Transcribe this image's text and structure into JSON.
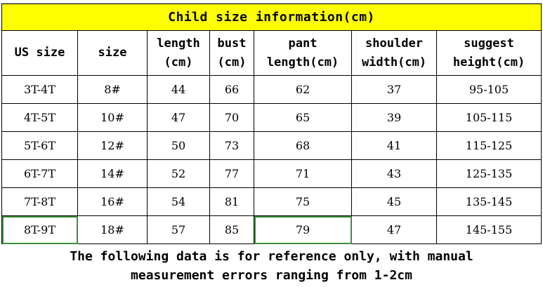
{
  "title": "Child size information(cm)",
  "table": {
    "header": [
      [
        "US size"
      ],
      [
        "size"
      ],
      [
        "length",
        "(cm)"
      ],
      [
        "bust",
        "(cm)"
      ],
      [
        "pant",
        "length(cm)"
      ],
      [
        "shoulder",
        "width(cm)"
      ],
      [
        "suggest",
        "height(cm)"
      ]
    ],
    "rows": [
      [
        "3T-4T",
        "8#",
        "44",
        "66",
        "62",
        "37",
        "95-105"
      ],
      [
        "4T-5T",
        "10#",
        "47",
        "70",
        "65",
        "39",
        "105-115"
      ],
      [
        "5T-6T",
        "12#",
        "50",
        "73",
        "68",
        "41",
        "115-125"
      ],
      [
        "6T-7T",
        "14#",
        "52",
        "77",
        "71",
        "43",
        "125-135"
      ],
      [
        "7T-8T",
        "16#",
        "54",
        "81",
        "75",
        "45",
        "135-145"
      ],
      [
        "8T-9T",
        "18#",
        "57",
        "85",
        "79",
        "47",
        "145-155"
      ]
    ]
  },
  "note": [
    "The following data is for reference only, with manual",
    "measurement errors ranging from 1-2cm"
  ]
}
